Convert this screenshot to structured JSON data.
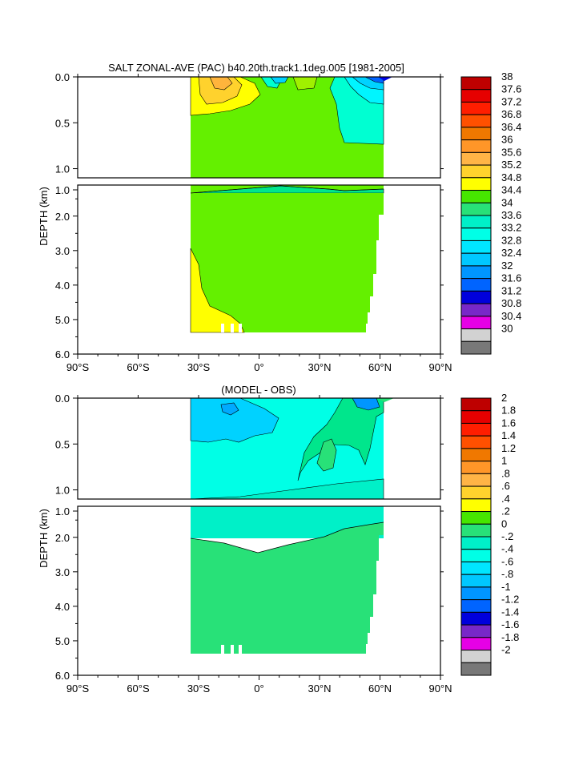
{
  "panels": [
    {
      "title": "SALT ZONAL-AVE (PAC) b40.20th.track1.1deg.005 [1981-2005]",
      "ylabel": "DEPTH (km)",
      "colorbar": [
        "38",
        "37.6",
        "37.2",
        "36.8",
        "36.4",
        "36",
        "35.6",
        "35.2",
        "34.8",
        "34.4",
        "34",
        "33.6",
        "33.2",
        "32.8",
        "32.4",
        "32",
        "31.6",
        "31.2",
        "30.8",
        "30.4",
        "30"
      ]
    },
    {
      "title": "(MODEL - OBS)",
      "ylabel": "DEPTH (km)",
      "colorbar": [
        "2",
        "1.8",
        "1.6",
        "1.4",
        "1.2",
        "1",
        ".8",
        ".6",
        ".4",
        ".2",
        "0",
        "-.2",
        "-.4",
        "-.6",
        "-.8",
        "-1",
        "-1.2",
        "-1.4",
        "-1.6",
        "-1.8",
        "-2"
      ]
    }
  ],
  "colors": {
    "palette_top_to_bottom": [
      "#c80000",
      "#e60000",
      "#ff2800",
      "#ff5a00",
      "#f57f00",
      "#ff9628",
      "#ffb43c",
      "#ffd22d",
      "#ffff00",
      "#a0f000",
      "#64f000",
      "#00e68c",
      "#00ffd2",
      "#00f5ff",
      "#00d2ff",
      "#00aaff",
      "#0064ff",
      "#0000e6",
      "#7d00c8",
      "#e600e6",
      "#d2d2d2",
      "#787878"
    ],
    "colorbar_boxes_top_to_bottom": [
      "#be0000",
      "#e60000",
      "#ff1e00",
      "#ff5000",
      "#f07800",
      "#ff9628",
      "#ffb446",
      "#ffd22d",
      "#ffff00",
      "#46e600",
      "#28e178",
      "#00f0c8",
      "#00ffe6",
      "#00e6ff",
      "#00c8ff",
      "#0096ff",
      "#0064ff",
      "#0000dc",
      "#7828c8",
      "#e600e6",
      "#d2d2d2",
      "#787878"
    ]
  },
  "chart_data": [
    {
      "type": "contour",
      "title": "SALT ZONAL-AVE (PAC) b40.20th.track1.1deg.005 [1981-2005]",
      "xlabel": "",
      "ylabel": "DEPTH (km)",
      "x_ticks": [
        "90°S",
        "60°S",
        "30°S",
        "0°",
        "30°N",
        "60°N",
        "90°N"
      ],
      "x_tick_values": [
        -90,
        -60,
        -30,
        0,
        30,
        60,
        90
      ],
      "y_ticks_upper": [
        "0.0",
        "0.5",
        "1.0"
      ],
      "y_ticks_lower": [
        "2.0",
        "3.0",
        "4.0",
        "5.0",
        "6.0"
      ],
      "y_tick_labels_printed": [
        "0.0",
        "0.5",
        "1.0",
        "1.0",
        "2.0",
        "3.0",
        "4.0",
        "5.0",
        "6.0"
      ],
      "ylim": [
        0,
        6
      ],
      "xlim": [
        -90,
        90
      ],
      "data_lat_range": [
        -33,
        62
      ],
      "contour_levels": [
        30,
        30.4,
        30.8,
        31.2,
        31.6,
        32,
        32.4,
        32.8,
        33.2,
        33.6,
        34,
        34.4,
        34.8,
        35.2,
        35.6,
        36,
        36.4,
        36.8,
        37.2,
        37.6,
        38
      ],
      "dominant_deep_value_range": [
        34.4,
        34.8
      ]
    },
    {
      "type": "contour",
      "title": "(MODEL - OBS)",
      "xlabel": "",
      "ylabel": "DEPTH (km)",
      "x_ticks": [
        "90°S",
        "60°S",
        "30°S",
        "0°",
        "30°N",
        "60°N",
        "90°N"
      ],
      "x_tick_values": [
        -90,
        -60,
        -30,
        0,
        30,
        60,
        90
      ],
      "y_ticks_upper": [
        "0.0",
        "0.5",
        "1.0"
      ],
      "y_ticks_lower": [
        "2.0",
        "3.0",
        "4.0",
        "5.0",
        "6.0"
      ],
      "y_tick_labels_printed": [
        "0.0",
        "0.5",
        "1.0",
        "1.0",
        "2.0",
        "3.0",
        "4.0",
        "5.0",
        "6.0"
      ],
      "ylim": [
        0,
        6
      ],
      "xlim": [
        -90,
        90
      ],
      "data_lat_range": [
        -33,
        62
      ],
      "contour_levels": [
        -2,
        -1.8,
        -1.6,
        -1.4,
        -1.2,
        -1,
        -0.8,
        -0.6,
        -0.4,
        -0.2,
        0,
        0.2,
        0.4,
        0.6,
        0.8,
        1,
        1.2,
        1.4,
        1.6,
        1.8,
        2
      ],
      "dominant_deep_value_range": [
        0,
        0.2
      ]
    }
  ]
}
